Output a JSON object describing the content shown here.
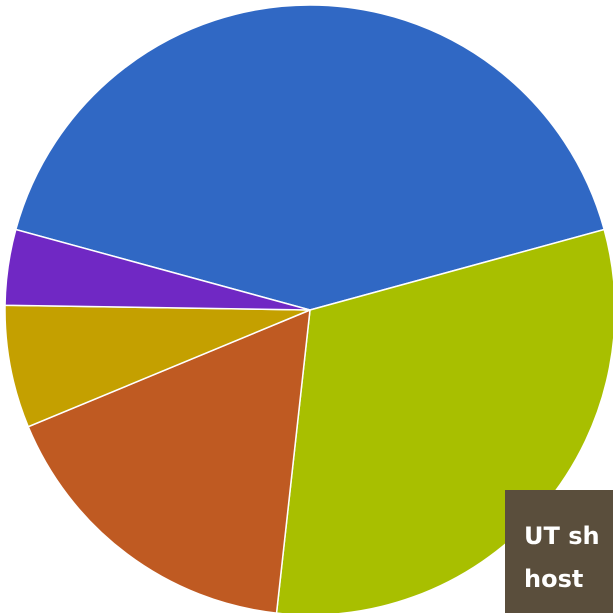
{
  "chart_data": {
    "type": "pie",
    "categories": [
      null,
      null,
      null,
      null,
      null
    ],
    "values": [
      41.5,
      31,
      17,
      6.5,
      4
    ],
    "colors": [
      "#3068c4",
      "#a8bf00",
      "#bf5a22",
      "#c4a000",
      "#7028c4"
    ],
    "annotation": [
      "UT sh",
      "host"
    ]
  }
}
